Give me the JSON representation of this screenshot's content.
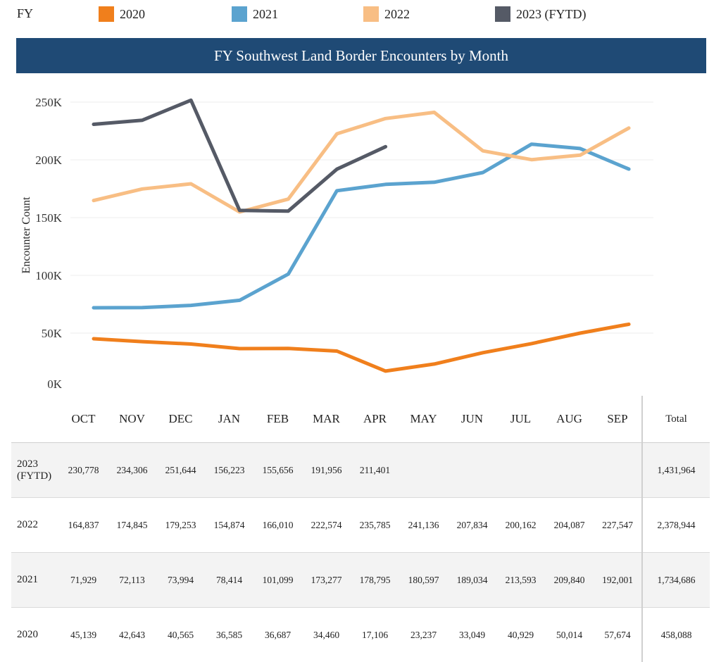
{
  "legend": {
    "label": "FY",
    "items": [
      {
        "name": "2020",
        "color": "#f07f1c"
      },
      {
        "name": "2021",
        "color": "#5ba3cf"
      },
      {
        "name": "2022",
        "color": "#f8be84"
      },
      {
        "name": "2023 (FYTD)",
        "color": "#555a66"
      }
    ]
  },
  "chart_data": {
    "type": "line",
    "title": "FY Southwest Land Border Encounters by Month",
    "xlabel": "",
    "ylabel": "Encounter Count",
    "categories": [
      "OCT",
      "NOV",
      "DEC",
      "JAN",
      "FEB",
      "MAR",
      "APR",
      "MAY",
      "JUN",
      "JUL",
      "AUG",
      "SEP"
    ],
    "y_ticks": [
      "0K",
      "50K",
      "100K",
      "150K",
      "200K",
      "250K"
    ],
    "ylim": [
      0,
      250000
    ],
    "grid": true,
    "series": [
      {
        "name": "2020",
        "color": "#f07f1c",
        "values": [
          45139,
          42643,
          40565,
          36585,
          36687,
          34460,
          17106,
          23237,
          33049,
          40929,
          50014,
          57674
        ]
      },
      {
        "name": "2021",
        "color": "#5ba3cf",
        "values": [
          71929,
          72113,
          73994,
          78414,
          101099,
          173277,
          178795,
          180597,
          189034,
          213593,
          209840,
          192001
        ]
      },
      {
        "name": "2022",
        "color": "#f8be84",
        "values": [
          164837,
          174845,
          179253,
          154874,
          166010,
          222574,
          235785,
          241136,
          207834,
          200162,
          204087,
          227547
        ]
      },
      {
        "name": "2023 (FYTD)",
        "color": "#555a66",
        "values": [
          230778,
          234306,
          251644,
          156223,
          155656,
          191956,
          211401,
          null,
          null,
          null,
          null,
          null
        ]
      }
    ]
  },
  "table": {
    "total_header": "Total",
    "rows": [
      {
        "label": "2023\n(FYTD)",
        "values": [
          "230,778",
          "234,306",
          "251,644",
          "156,223",
          "155,656",
          "191,956",
          "211,401",
          "",
          "",
          "",
          "",
          ""
        ],
        "total": "1,431,964"
      },
      {
        "label": "2022",
        "values": [
          "164,837",
          "174,845",
          "179,253",
          "154,874",
          "166,010",
          "222,574",
          "235,785",
          "241,136",
          "207,834",
          "200,162",
          "204,087",
          "227,547"
        ],
        "total": "2,378,944"
      },
      {
        "label": "2021",
        "values": [
          "71,929",
          "72,113",
          "73,994",
          "78,414",
          "101,099",
          "173,277",
          "178,795",
          "180,597",
          "189,034",
          "213,593",
          "209,840",
          "192,001"
        ],
        "total": "1,734,686"
      },
      {
        "label": "2020",
        "values": [
          "45,139",
          "42,643",
          "40,565",
          "36,585",
          "36,687",
          "34,460",
          "17,106",
          "23,237",
          "33,049",
          "40,929",
          "50,014",
          "57,674"
        ],
        "total": "458,088"
      }
    ]
  }
}
